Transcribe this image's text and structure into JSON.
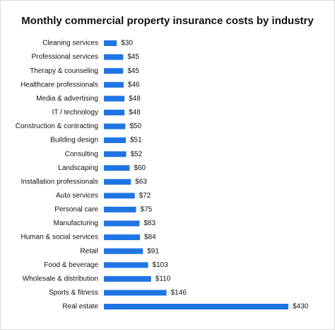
{
  "chart_data": {
    "type": "bar",
    "orientation": "horizontal",
    "title": "Monthly commercial property insurance costs by industry",
    "categories": [
      "Cleaning services",
      "Professional services",
      "Therapy & counseling",
      "Healthcare professionals",
      "Media & advertising",
      "IT / technology",
      "Construction & contracting",
      "Building design",
      "Consulting",
      "Landscaping",
      "Installation professionals",
      "Auto services",
      "Personal care",
      "Manufacturing",
      "Human & social services",
      "Retail",
      "Food & beverage",
      "Wholesale & distribution",
      "Sports & fitness",
      "Real estate"
    ],
    "values": [
      30,
      45,
      45,
      46,
      48,
      48,
      50,
      51,
      52,
      60,
      63,
      72,
      75,
      83,
      84,
      91,
      103,
      110,
      146,
      430
    ],
    "value_labels": [
      "$30",
      "$45",
      "$45",
      "$46",
      "$48",
      "$48",
      "$50",
      "$51",
      "$52",
      "$60",
      "$63",
      "$72",
      "$75",
      "$83",
      "$84",
      "$91",
      "$103",
      "$110",
      "$146",
      "$430"
    ],
    "color": "#1f74e4"
  }
}
